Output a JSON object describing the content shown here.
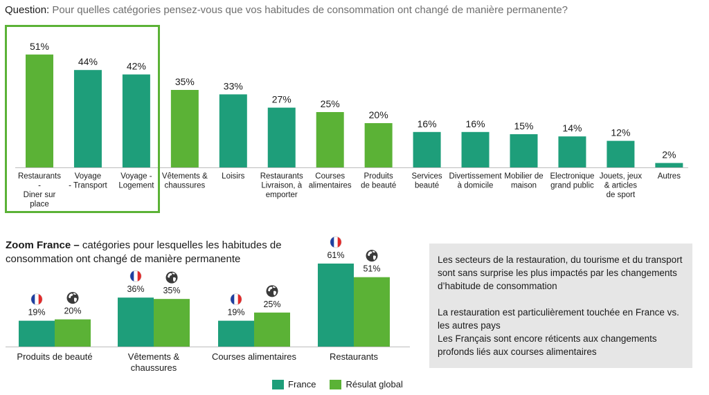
{
  "question": {
    "label": "Question:",
    "text": "Pour quelles catégories pensez-vous que vos habitudes de consommation ont changé de manière permanente?"
  },
  "colors": {
    "france": "#1e9e7a",
    "global": "#5bb236",
    "highlight": "#5bb236",
    "panel": "#e6e6e6"
  },
  "chart_data": [
    {
      "type": "bar",
      "categories": [
        [
          "Restaurants",
          "-",
          "Diner sur",
          "place"
        ],
        [
          "Voyage",
          "- Transport"
        ],
        [
          "Voyage -",
          "Logement"
        ],
        [
          "Vêtements &",
          "chaussures"
        ],
        [
          "Loisirs"
        ],
        [
          "Restaurants",
          "Livraison, à",
          "emporter"
        ],
        [
          "Courses",
          "alimentaires"
        ],
        [
          "Produits",
          "de beauté"
        ],
        [
          "Services",
          "beauté"
        ],
        [
          "Divertissement",
          "à domicile"
        ],
        [
          "Mobilier de",
          "maison"
        ],
        [
          "Electronique",
          "grand public"
        ],
        [
          "Jouets, jeux",
          "& articles",
          "de sport"
        ],
        [
          "Autres"
        ]
      ],
      "values": [
        51,
        44,
        42,
        35,
        33,
        27,
        25,
        20,
        16,
        16,
        15,
        14,
        12,
        2
      ],
      "value_labels": [
        "51%",
        "44%",
        "42%",
        "35%",
        "33%",
        "27%",
        "25%",
        "20%",
        "16%",
        "16%",
        "15%",
        "14%",
        "12%",
        "2%"
      ],
      "bar_colors": [
        "global",
        "france",
        "france",
        "global",
        "france",
        "france",
        "global",
        "global",
        "france",
        "france",
        "france",
        "france",
        "france",
        "france"
      ],
      "highlighted_categories": [
        0,
        1,
        2
      ],
      "ylim": [
        0,
        55
      ]
    },
    {
      "type": "bar",
      "title_bold": "Zoom France –",
      "title_rest": "catégories pour lesquelles les habitudes de consommation ont changé de manière permanente",
      "categories": [
        [
          "Produits de beauté"
        ],
        [
          "Vêtements &",
          "chaussures"
        ],
        [
          "Courses alimentaires"
        ],
        [
          "Restaurants"
        ]
      ],
      "series": [
        {
          "name": "France",
          "values": [
            19,
            36,
            19,
            61
          ],
          "labels": [
            "19%",
            "36%",
            "19%",
            "61%"
          ],
          "icon": "france-flag-icon",
          "color": "france"
        },
        {
          "name": "Résulat global",
          "values": [
            20,
            35,
            25,
            51
          ],
          "labels": [
            "20%",
            "35%",
            "25%",
            "51%"
          ],
          "icon": "globe-icon",
          "color": "global"
        }
      ],
      "ylim": [
        0,
        61
      ]
    }
  ],
  "info_panel": {
    "paragraph1": "Les secteurs de la restauration, du tourisme et du transport sont sans surprise les plus impactés par les changements d’habitude de consommation",
    "paragraph2": "La restauration est particulièrement touchée en France vs. les autres pays",
    "paragraph3": "Les Français sont encore réticents aux changements profonds liés aux courses alimentaires"
  },
  "legend": {
    "france": "France",
    "global": "Résulat global"
  }
}
